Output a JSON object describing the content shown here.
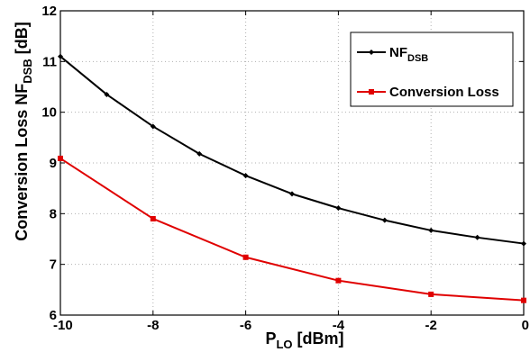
{
  "chart_data": {
    "type": "line",
    "xlabel": {
      "base": "P",
      "sub": "LO",
      "rest": " [dBm]"
    },
    "ylabel": {
      "pre": "Conversion Loss NF",
      "sub": "DSB",
      "rest": " [dB]"
    },
    "xlim": [
      -10,
      0
    ],
    "ylim": [
      6,
      12
    ],
    "xticks": [
      "-10",
      "-8",
      "-6",
      "-4",
      "-2",
      "0"
    ],
    "yticks": [
      "6",
      "7",
      "8",
      "9",
      "10",
      "11",
      "12"
    ],
    "grid": true,
    "legend_position": "top-right",
    "series": [
      {
        "name": "NF",
        "name_sub": "DSB",
        "color": "#000000",
        "marker": "diamond",
        "x": [
          -10,
          -9,
          -8,
          -7,
          -6,
          -5,
          -4,
          -3,
          -2,
          -1,
          0
        ],
        "y": [
          11.1,
          10.35,
          9.72,
          9.18,
          8.75,
          8.39,
          8.11,
          7.87,
          7.67,
          7.53,
          7.41
        ]
      },
      {
        "name": "Conversion Loss",
        "color": "#e00000",
        "marker": "square",
        "x": [
          -10,
          -8,
          -6,
          -4,
          -2,
          0
        ],
        "y": [
          9.09,
          7.9,
          7.14,
          6.68,
          6.41,
          6.29
        ]
      }
    ]
  }
}
